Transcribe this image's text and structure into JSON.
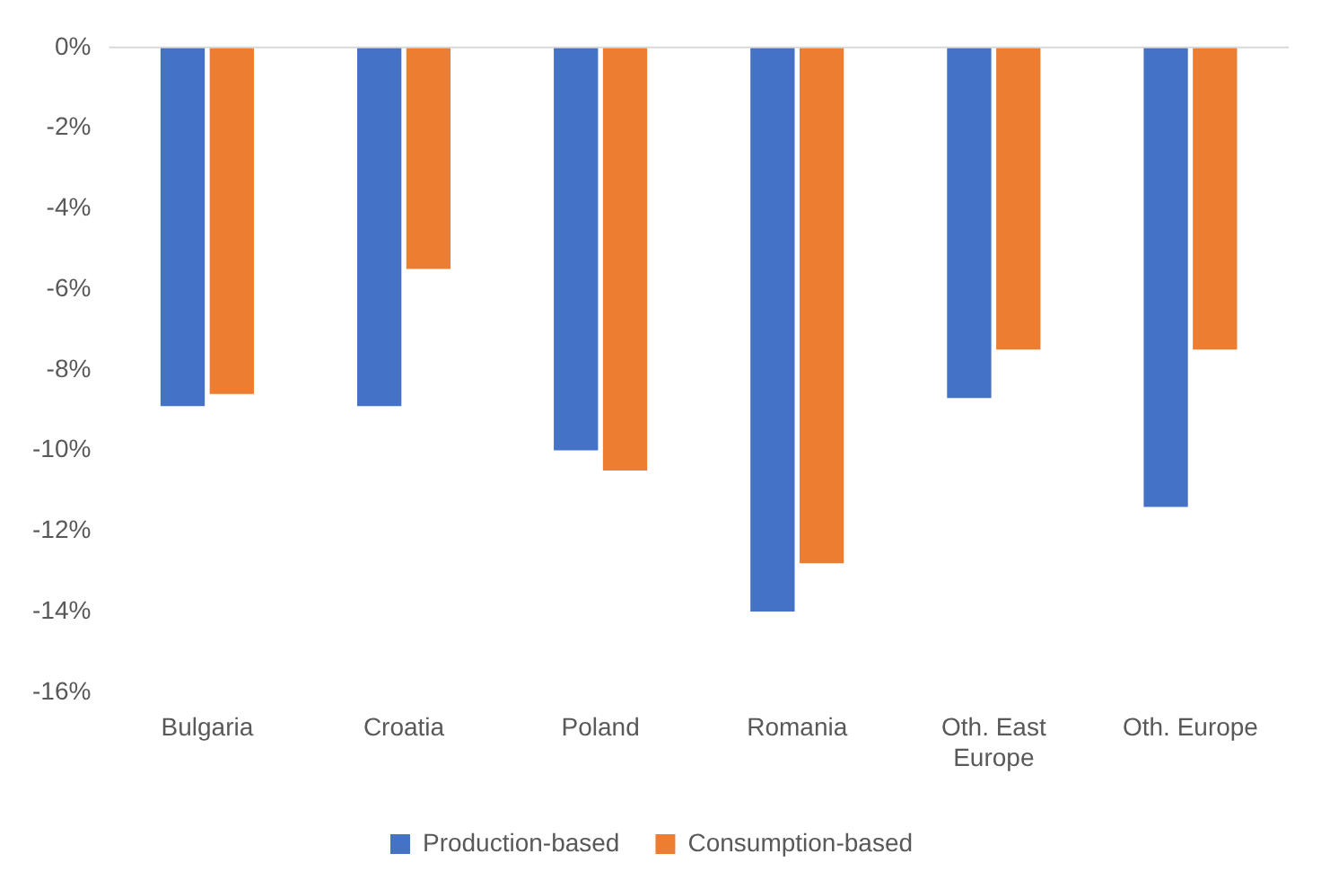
{
  "chart_data": {
    "type": "bar",
    "categories": [
      "Bulgaria",
      "Croatia",
      "Poland",
      "Romania",
      "Oth. East Europe",
      "Oth. Europe"
    ],
    "series": [
      {
        "name": "Production-based",
        "color": "#4472c4",
        "values": [
          -0.089,
          -0.089,
          -0.1,
          -0.14,
          -0.087,
          -0.114
        ]
      },
      {
        "name": "Consumption-based",
        "color": "#ed7d31",
        "values": [
          -0.086,
          -0.055,
          -0.105,
          -0.128,
          -0.075,
          -0.075
        ]
      }
    ],
    "ylim": [
      -0.16,
      0
    ],
    "yticks": [
      {
        "value": 0,
        "label": "0%"
      },
      {
        "value": -0.02,
        "label": "-2%"
      },
      {
        "value": -0.04,
        "label": "-4%"
      },
      {
        "value": -0.06,
        "label": "-6%"
      },
      {
        "value": -0.08,
        "label": "-8%"
      },
      {
        "value": -0.1,
        "label": "-10%"
      },
      {
        "value": -0.12,
        "label": "-12%"
      },
      {
        "value": -0.14,
        "label": "-14%"
      },
      {
        "value": -0.16,
        "label": "-16%"
      }
    ],
    "grid": false,
    "legend": "bottom"
  }
}
